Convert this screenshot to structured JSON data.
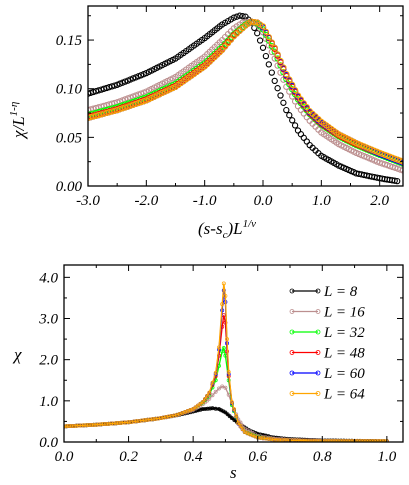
{
  "chart_data": [
    {
      "type": "scatter",
      "xlabel": "(s-s_c)L^{1/ν}",
      "ylabel": "χ/L^{1-η}",
      "xlim": [
        -3.0,
        2.4
      ],
      "ylim": [
        0.0,
        0.185
      ],
      "xticks": [
        -3.0,
        -2.0,
        -1.0,
        0.0,
        1.0,
        2.0
      ],
      "xtick_labels": [
        "-3.0",
        "-2.0",
        "-1.0",
        "0.0",
        "1.0",
        "2.0"
      ],
      "yticks": [
        0.0,
        0.05,
        0.1,
        0.15
      ],
      "ytick_labels": [
        "0.00",
        "0.05",
        "0.10",
        "0.15"
      ],
      "grid": false,
      "legend": "none",
      "series": [
        {
          "name": "L = 8",
          "color": "#000000",
          "x": [
            -3.0,
            -2.5,
            -2.0,
            -1.5,
            -1.0,
            -0.7,
            -0.5,
            -0.4,
            -0.3,
            -0.2,
            -0.1,
            0.0,
            0.2,
            0.4,
            0.6,
            0.8,
            1.0,
            1.3,
            1.6,
            2.0,
            2.3
          ],
          "y": [
            0.095,
            0.104,
            0.116,
            0.131,
            0.152,
            0.166,
            0.173,
            0.175,
            0.174,
            0.168,
            0.157,
            0.142,
            0.108,
            0.078,
            0.057,
            0.042,
            0.031,
            0.021,
            0.013,
            0.008,
            0.005
          ]
        },
        {
          "name": "L = 16",
          "color": "#bc8f8f",
          "x": [
            -3.0,
            -2.5,
            -2.0,
            -1.5,
            -1.0,
            -0.7,
            -0.5,
            -0.35,
            -0.2,
            -0.1,
            0.0,
            0.2,
            0.4,
            0.6,
            0.8,
            1.0,
            1.3,
            1.6,
            2.0,
            2.4
          ],
          "y": [
            0.078,
            0.086,
            0.097,
            0.112,
            0.133,
            0.15,
            0.162,
            0.168,
            0.169,
            0.166,
            0.158,
            0.131,
            0.102,
            0.082,
            0.067,
            0.055,
            0.043,
            0.034,
            0.024,
            0.016
          ]
        },
        {
          "name": "L = 32",
          "color": "#00ff00",
          "x": [
            -3.0,
            -2.5,
            -2.0,
            -1.5,
            -1.0,
            -0.7,
            -0.5,
            -0.3,
            -0.2,
            -0.1,
            0.0,
            0.2,
            0.4,
            0.6,
            0.8,
            1.0,
            1.3,
            1.6,
            2.0,
            2.4
          ],
          "y": [
            0.073,
            0.081,
            0.091,
            0.105,
            0.126,
            0.143,
            0.156,
            0.166,
            0.169,
            0.167,
            0.161,
            0.138,
            0.11,
            0.089,
            0.074,
            0.063,
            0.051,
            0.042,
            0.032,
            0.023
          ]
        },
        {
          "name": "L = 48",
          "color": "#ff0000",
          "x": [
            -3.0,
            -2.5,
            -2.0,
            -1.5,
            -1.0,
            -0.7,
            -0.5,
            -0.3,
            -0.2,
            -0.1,
            0.0,
            0.2,
            0.4,
            0.6,
            0.8,
            1.0,
            1.3,
            1.6,
            2.0,
            2.4
          ],
          "y": [
            0.071,
            0.079,
            0.089,
            0.103,
            0.124,
            0.141,
            0.155,
            0.165,
            0.169,
            0.168,
            0.163,
            0.141,
            0.113,
            0.091,
            0.075,
            0.064,
            0.052,
            0.043,
            0.033,
            0.024
          ]
        },
        {
          "name": "L = 60",
          "color": "#0000ff",
          "x": [
            -3.0,
            -2.5,
            -2.0,
            -1.5,
            -1.0,
            -0.7,
            -0.5,
            -0.3,
            -0.2,
            -0.1,
            0.0,
            0.2,
            0.4,
            0.6,
            0.8,
            1.0,
            1.3,
            1.6,
            2.0,
            2.4
          ],
          "y": [
            0.07,
            0.078,
            0.088,
            0.102,
            0.123,
            0.14,
            0.154,
            0.165,
            0.169,
            0.168,
            0.163,
            0.142,
            0.114,
            0.092,
            0.076,
            0.065,
            0.053,
            0.044,
            0.033,
            0.024
          ]
        },
        {
          "name": "L = 64",
          "color": "#ffa500",
          "x": [
            -3.0,
            -2.5,
            -2.0,
            -1.5,
            -1.0,
            -0.7,
            -0.5,
            -0.3,
            -0.2,
            -0.1,
            0.0,
            0.2,
            0.4,
            0.6,
            0.8,
            1.0,
            1.3,
            1.6,
            2.0,
            2.4
          ],
          "y": [
            0.07,
            0.078,
            0.088,
            0.102,
            0.123,
            0.14,
            0.154,
            0.165,
            0.169,
            0.168,
            0.164,
            0.142,
            0.115,
            0.093,
            0.077,
            0.066,
            0.053,
            0.044,
            0.034,
            0.025
          ]
        }
      ]
    },
    {
      "type": "line",
      "xlabel": "s",
      "ylabel": "χ",
      "xlim": [
        0.0,
        1.05
      ],
      "ylim": [
        0.0,
        4.3
      ],
      "xticks": [
        0.0,
        0.2,
        0.4,
        0.6,
        0.8,
        1.0
      ],
      "xtick_labels": [
        "0.0",
        "0.2",
        "0.4",
        "0.6",
        "0.8",
        "1.0"
      ],
      "yticks": [
        0.0,
        1.0,
        2.0,
        3.0,
        4.0
      ],
      "ytick_labels": [
        "0.0",
        "1.0",
        "2.0",
        "3.0",
        "4.0"
      ],
      "grid": false,
      "legend": "top-right",
      "legend_labels": [
        "L = 8",
        "L = 16",
        "L = 32",
        "L = 48",
        "L = 60",
        "L = 64"
      ],
      "series": [
        {
          "name": "L = 8",
          "color": "#000000",
          "x": [
            0.0,
            0.1,
            0.2,
            0.3,
            0.35,
            0.4,
            0.43,
            0.46,
            0.48,
            0.5,
            0.52,
            0.55,
            0.58,
            0.6,
            0.65,
            0.7,
            0.8,
            0.9,
            1.0
          ],
          "y": [
            0.38,
            0.42,
            0.48,
            0.58,
            0.65,
            0.74,
            0.8,
            0.82,
            0.8,
            0.72,
            0.58,
            0.4,
            0.26,
            0.2,
            0.11,
            0.07,
            0.04,
            0.03,
            0.02
          ]
        },
        {
          "name": "L = 16",
          "color": "#bc8f8f",
          "x": [
            0.0,
            0.1,
            0.2,
            0.3,
            0.35,
            0.4,
            0.43,
            0.45,
            0.47,
            0.48,
            0.49,
            0.5,
            0.51,
            0.52,
            0.54,
            0.56,
            0.6,
            0.65,
            0.7,
            0.8,
            1.0
          ],
          "y": [
            0.38,
            0.42,
            0.48,
            0.58,
            0.66,
            0.78,
            0.92,
            1.05,
            1.22,
            1.3,
            1.35,
            1.32,
            1.15,
            0.92,
            0.55,
            0.32,
            0.15,
            0.08,
            0.05,
            0.03,
            0.02
          ]
        },
        {
          "name": "L = 32",
          "color": "#00ff00",
          "x": [
            0.0,
            0.1,
            0.2,
            0.3,
            0.35,
            0.4,
            0.43,
            0.45,
            0.47,
            0.48,
            0.49,
            0.495,
            0.5,
            0.51,
            0.52,
            0.54,
            0.56,
            0.6,
            0.65,
            0.7,
            0.8,
            1.0
          ],
          "y": [
            0.38,
            0.42,
            0.48,
            0.58,
            0.66,
            0.8,
            0.96,
            1.15,
            1.5,
            1.85,
            2.2,
            2.28,
            2.1,
            1.5,
            0.9,
            0.45,
            0.25,
            0.12,
            0.06,
            0.04,
            0.02,
            0.02
          ]
        },
        {
          "name": "L = 48",
          "color": "#ff0000",
          "x": [
            0.0,
            0.1,
            0.2,
            0.3,
            0.35,
            0.4,
            0.43,
            0.45,
            0.47,
            0.48,
            0.49,
            0.495,
            0.5,
            0.505,
            0.51,
            0.52,
            0.54,
            0.56,
            0.6,
            0.65,
            0.7,
            0.8,
            1.0
          ],
          "y": [
            0.38,
            0.42,
            0.48,
            0.58,
            0.66,
            0.8,
            0.97,
            1.18,
            1.6,
            2.1,
            2.8,
            3.08,
            2.9,
            2.2,
            1.6,
            0.95,
            0.45,
            0.24,
            0.11,
            0.06,
            0.04,
            0.02,
            0.02
          ]
        },
        {
          "name": "L = 60",
          "color": "#0000ff",
          "x": [
            0.0,
            0.1,
            0.2,
            0.3,
            0.35,
            0.4,
            0.43,
            0.45,
            0.47,
            0.48,
            0.49,
            0.495,
            0.5,
            0.505,
            0.51,
            0.52,
            0.54,
            0.56,
            0.6,
            0.65,
            0.7,
            0.8,
            1.0
          ],
          "y": [
            0.38,
            0.42,
            0.48,
            0.58,
            0.66,
            0.8,
            0.97,
            1.19,
            1.65,
            2.25,
            3.2,
            3.68,
            3.4,
            2.4,
            1.65,
            0.95,
            0.45,
            0.24,
            0.11,
            0.06,
            0.04,
            0.02,
            0.02
          ]
        },
        {
          "name": "L = 64",
          "color": "#ffa500",
          "x": [
            0.0,
            0.1,
            0.2,
            0.3,
            0.35,
            0.4,
            0.43,
            0.45,
            0.47,
            0.48,
            0.49,
            0.495,
            0.5,
            0.505,
            0.51,
            0.52,
            0.54,
            0.56,
            0.6,
            0.65,
            0.7,
            0.8,
            1.0
          ],
          "y": [
            0.38,
            0.42,
            0.48,
            0.58,
            0.66,
            0.8,
            0.97,
            1.2,
            1.68,
            2.3,
            3.35,
            3.85,
            3.55,
            2.5,
            1.7,
            0.97,
            0.46,
            0.24,
            0.11,
            0.06,
            0.04,
            0.02,
            0.02
          ]
        }
      ]
    }
  ]
}
